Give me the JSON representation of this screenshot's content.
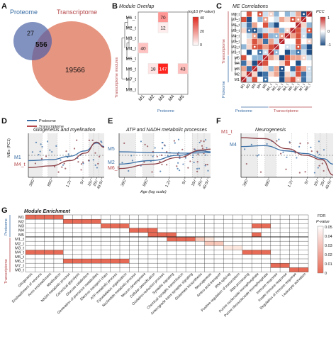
{
  "panels": {
    "A": {
      "letter": "A",
      "proteome_label": "Proteome",
      "transcriptome_label": "Transcriptome",
      "only_proteome": 27,
      "overlap": 556,
      "only_transcriptome": 19566,
      "colors": {
        "proteome": "#6c7fb5",
        "transcriptome": "#e69580",
        "overlap": "#7d6f9c"
      }
    },
    "B": {
      "letter": "B",
      "title": "Module Overlap",
      "legend_title": "-log10 (P-value)",
      "legend_ticks": [
        "40",
        "20",
        "0"
      ],
      "x_axis_title": "Proteome",
      "y_axis_title": "Transcriptome modules",
      "cols": [
        "M1",
        "M2",
        "M3",
        "M4",
        "M5"
      ],
      "rows": [
        "M1_t",
        "M2_t",
        "M3_t",
        "M4_t",
        "M5_t",
        "M6_t",
        "M7_t",
        "M8_t"
      ],
      "cells": [
        {
          "row": "M1_t",
          "col": "M3",
          "value": 70
        },
        {
          "row": "M2_t",
          "col": "M3",
          "value": 12
        },
        {
          "row": "M4_t",
          "col": "M1",
          "value": 40
        },
        {
          "row": "M6_t",
          "col": "M2",
          "value": 18
        },
        {
          "row": "M6_t",
          "col": "M3",
          "value": 147
        },
        {
          "row": "M6_t",
          "col": "M5",
          "value": 43
        }
      ]
    },
    "C": {
      "letter": "C",
      "title": "ME Correlations",
      "legend_title": "PCC",
      "legend_ticks": [
        "1",
        "0",
        "-1"
      ],
      "proteome_label": "Proteome",
      "transcriptome_label": "Transcriptome",
      "rows": [
        "M8_t",
        "M7_t",
        "M6_t",
        "M5_t",
        "M4_t",
        "M3_t",
        "M2_t",
        "M1_t",
        "M5",
        "M4",
        "M3",
        "M2",
        "M1"
      ],
      "cols": [
        "M1",
        "M2",
        "M3",
        "M4",
        "M5",
        "M1_t",
        "M2_t",
        "M3_t",
        "M4_t",
        "M5_t",
        "M6_t",
        "M7_t",
        "M8_t"
      ]
    },
    "D": {
      "letter": "D",
      "title": "Gliogenesis and myelination",
      "y_axis_title": "MEs (PC1)",
      "legend": [
        "Proteome",
        "Transcriptome"
      ],
      "series_labels": [
        "M1",
        "M4_t"
      ],
      "ticks": [
        "39D",
        "89D",
        "1.2Y",
        "5Y",
        "15Y",
        "25Y",
        "49.5Y"
      ]
    },
    "E": {
      "letter": "E",
      "title": "ATP and NADH metabolic processes",
      "series_labels": [
        "M5",
        "M2",
        "M6_t"
      ],
      "ticks": [
        "39D",
        "89D",
        "1.2Y",
        "5Y",
        "15Y",
        "25Y",
        "49.5Y"
      ],
      "x_axis_title": "Age (log scale)"
    },
    "F": {
      "letter": "F",
      "title": "Neurogenesis",
      "series_labels": [
        "M1_t",
        "M4"
      ],
      "ticks": [
        "39D",
        "89D",
        "1.2Y",
        "5Y",
        "15Y",
        "25Y",
        "49.5Y"
      ]
    },
    "G": {
      "letter": "G",
      "title": "Module Enrichment",
      "proteome_label": "Proteome",
      "transcriptome_label": "Transcriptome",
      "legend_title": "FDR P-value",
      "legend_ticks": [
        "0.05",
        "0.04",
        "0.03",
        "0.02",
        "0.01",
        "0"
      ],
      "rows": [
        "M1",
        "M2",
        "M3",
        "M4",
        "M5",
        "M1_t",
        "M2_t",
        "M3_t",
        "M4_t",
        "M5_t",
        "M6_t",
        "M7_t",
        "M8_t"
      ],
      "terms": [
        "Gliogenesis",
        "Ensheathment of neurons",
        "Axon ensheathment",
        "Myelination",
        "NADH metabolic process",
        "Canonical glycolysis",
        "Glucose catabolism",
        "Generation of precursor metabolites",
        "Electron transport chain",
        "ATP metabolic process",
        "Cytoskeleton organization",
        "Nucleotide metabolic process",
        "Neuron development",
        "Cellular detoxification",
        "Oxidation-reduction process",
        "Synaptic signaling",
        "Chemical synaptic transmission",
        "Anterograde trans-synaptic signaling",
        "Glutamate biosynthesis",
        "Neurogenesis",
        "Amino acid transport",
        "RNA splicing",
        "Positive regulation of transcription",
        "RNA processing",
        "Purine nucleoside monophosphate",
        "Purine ribonucleoside monophosphate",
        "Immune response",
        "Innate immune response",
        "Regulation of immune response",
        "Leukocyte activation"
      ]
    }
  }
}
